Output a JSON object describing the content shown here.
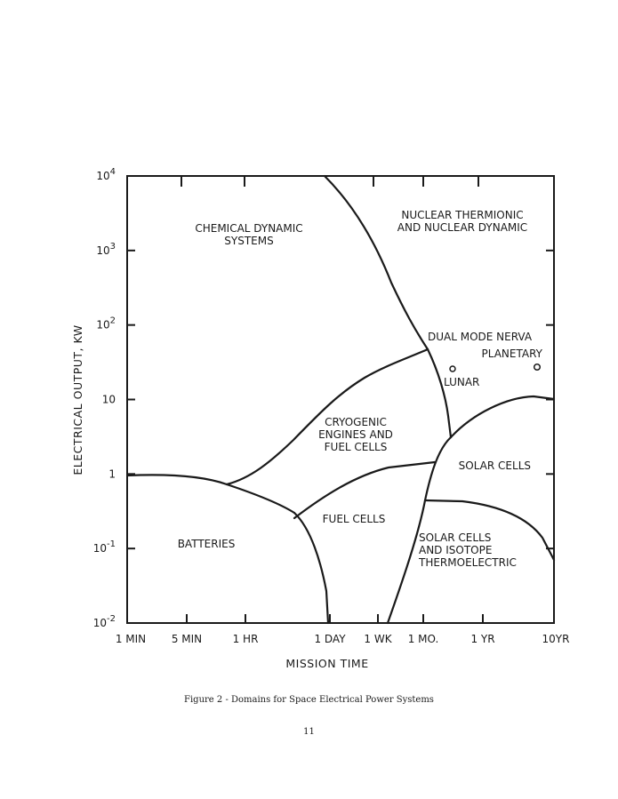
{
  "figure": {
    "caption": "Figure 2 - Domains for Space Electrical Power Systems",
    "page_number": "11"
  },
  "chart_data": {
    "type": "region-map",
    "xlabel": "MISSION TIME",
    "ylabel": "ELECTRICAL OUTPUT, KW",
    "y_scale": "log",
    "ylim": [
      0.01,
      10000
    ],
    "y_ticks": [
      {
        "value": 0.01,
        "base": "10",
        "exp": "-2"
      },
      {
        "value": 0.1,
        "base": "10",
        "exp": "-1"
      },
      {
        "value": 1,
        "base": "1",
        "exp": ""
      },
      {
        "value": 10,
        "base": "10",
        "exp": ""
      },
      {
        "value": 100,
        "base": "10",
        "exp": "2"
      },
      {
        "value": 1000,
        "base": "10",
        "exp": "3"
      },
      {
        "value": 10000,
        "base": "10",
        "exp": "4"
      }
    ],
    "x_ticks": [
      "1 MIN",
      "5 MIN",
      "1 HR",
      "1 DAY",
      "1 WK",
      "1 MO.",
      "1 YR",
      "10YR"
    ],
    "regions": [
      {
        "lines": [
          "CHEMICAL DYNAMIC",
          "SYSTEMS"
        ]
      },
      {
        "lines": [
          "NUCLEAR THERMIONIC",
          "AND NUCLEAR DYNAMIC"
        ]
      },
      {
        "lines": [
          "DUAL MODE NERVA"
        ]
      },
      {
        "lines": [
          "PLANETARY"
        ]
      },
      {
        "lines": [
          "LUNAR"
        ]
      },
      {
        "lines": [
          "CRYOGENIC",
          "ENGINES AND",
          "FUEL CELLS"
        ]
      },
      {
        "lines": [
          "SOLAR CELLS"
        ]
      },
      {
        "lines": [
          "FUEL CELLS"
        ]
      },
      {
        "lines": [
          "BATTERIES"
        ]
      },
      {
        "lines": [
          "SOLAR CELLS",
          "AND ISOTOPE",
          "THERMOELECTRIC"
        ]
      }
    ],
    "boundaries": [
      {
        "name": "nuclear-chemical-boundary"
      },
      {
        "name": "cryogenic-upper-boundary"
      },
      {
        "name": "solar-upper-boundary"
      },
      {
        "name": "batteries-upper-boundary"
      },
      {
        "name": "fuelcell-solar-boundary"
      },
      {
        "name": "batteries-right-boundary"
      },
      {
        "name": "solar-isotope-left-boundary"
      },
      {
        "name": "solar-isotope-upper-boundary"
      }
    ]
  }
}
